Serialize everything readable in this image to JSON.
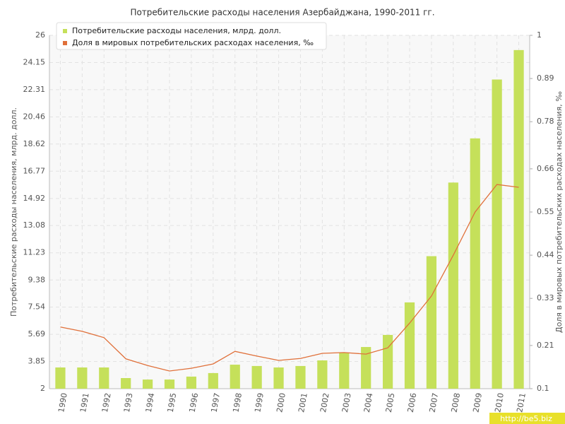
{
  "chart_data": {
    "type": "bar_line",
    "title": "Потребительские расходы населения Азербайджана, 1990-2011 гг.",
    "y_label": "Потребительские расходы населения, млрд. долл.",
    "y2_label": "Доля в мировых потребительских расходах населения, ‰",
    "watermark": "http://be5.biz",
    "categories": [
      "1990",
      "1991",
      "1992",
      "1993",
      "1994",
      "1995",
      "1996",
      "1997",
      "1998",
      "1999",
      "2000",
      "2001",
      "2002",
      "2003",
      "2004",
      "2005",
      "2006",
      "2007",
      "2008",
      "2009",
      "2010",
      "2011"
    ],
    "series": [
      {
        "name": "Потребительские расходы населения, млрд. долл.",
        "type": "bar",
        "color": "#c5e05a",
        "values": [
          3.44,
          3.44,
          3.44,
          2.72,
          2.62,
          2.62,
          2.82,
          3.06,
          3.63,
          3.54,
          3.44,
          3.54,
          3.92,
          4.45,
          4.83,
          5.65,
          7.86,
          11.0,
          16.0,
          19.0,
          23.0,
          25.0
        ]
      },
      {
        "name": "Доля в мировых потребительских расходах населения, ‰",
        "type": "line",
        "axis": "y2",
        "color": "#e0703a",
        "values": [
          0.257,
          0.246,
          0.23,
          0.176,
          0.159,
          0.145,
          0.152,
          0.163,
          0.195,
          0.183,
          0.172,
          0.177,
          0.19,
          0.192,
          0.188,
          0.204,
          0.267,
          0.336,
          0.44,
          0.55,
          0.62,
          0.613
        ]
      }
    ],
    "ylim": [
      2,
      26
    ],
    "yticks": [
      2,
      3.85,
      5.69,
      7.54,
      9.38,
      11.23,
      13.08,
      14.92,
      16.77,
      18.62,
      20.46,
      22.31,
      24.15,
      26
    ],
    "y2lim": [
      0.1,
      1
    ],
    "y2ticks": [
      0.1,
      0.21,
      0.33,
      0.44,
      0.55,
      0.66,
      0.78,
      0.89,
      1
    ],
    "grid": true
  }
}
